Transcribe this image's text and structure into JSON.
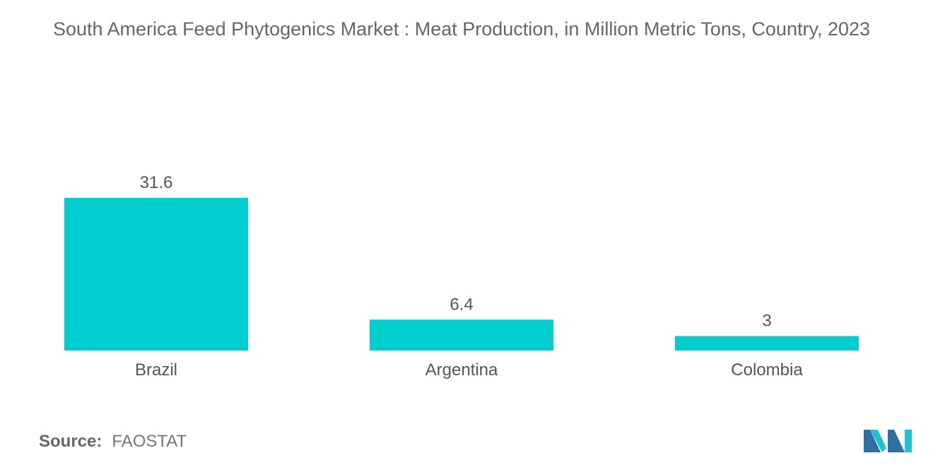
{
  "title": "South America Feed Phytogenics Market : Meat Production, in Million Metric Tons, Country, 2023",
  "source": {
    "label": "Source:",
    "value": "FAOSTAT"
  },
  "colors": {
    "bar": "#00CED1",
    "text": "#555555",
    "title": "#666666",
    "logo_dark": "#2E6FA3",
    "logo_light": "#1FC3D0"
  },
  "chart_data": {
    "type": "bar",
    "title": "South America Feed Phytogenics Market : Meat Production, in Million Metric Tons, Country, 2023",
    "categories": [
      "Brazil",
      "Argentina",
      "Colombia"
    ],
    "values": [
      31.6,
      6.4,
      3
    ],
    "data_labels": [
      "31.6",
      "6.4",
      "3"
    ],
    "xlabel": "",
    "ylabel": "",
    "ylim": [
      0,
      31.6
    ],
    "grid": false,
    "legend": "none"
  }
}
